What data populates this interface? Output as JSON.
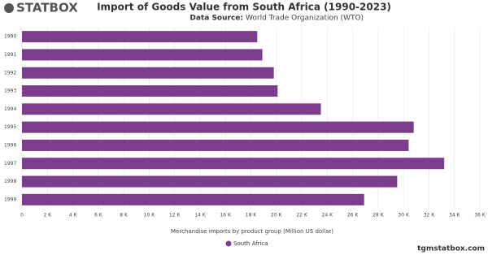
{
  "brand": "STATBOX",
  "footer": "tgmstatbox.com",
  "chart_data": {
    "type": "barh",
    "title": "Import of Goods Value from South Africa (1990-2023)",
    "source_label": "Data Source:",
    "source": "World Trade Organization (WTO)",
    "xlabel": "Merchandise imports by product group (Million US dollar)",
    "categories": [
      "1990",
      "1991",
      "1992",
      "1993",
      "1994",
      "1995",
      "1996",
      "1997",
      "1998",
      "1999"
    ],
    "series": [
      {
        "name": "South Africa",
        "color": "#7b3d8c",
        "values": [
          18500,
          18900,
          19800,
          20100,
          23500,
          30800,
          30400,
          33200,
          29500,
          26900
        ]
      }
    ],
    "xlim": [
      0,
      36000
    ],
    "xticks": [
      0,
      {
        "value": 2000,
        "label": "2 K"
      },
      {
        "value": 4000,
        "label": "4 K"
      },
      {
        "value": 6000,
        "label": "6 K"
      },
      {
        "value": 8000,
        "label": "8 K"
      },
      {
        "value": 10000,
        "label": "10 K"
      },
      {
        "value": 12000,
        "label": "12 K"
      },
      {
        "value": 14000,
        "label": "14 K"
      },
      {
        "value": 16000,
        "label": "16 K"
      },
      {
        "value": 18000,
        "label": "18 K"
      },
      {
        "value": 20000,
        "label": "20 K"
      },
      {
        "value": 22000,
        "label": "22 K"
      },
      {
        "value": 24000,
        "label": "24 K"
      },
      {
        "value": 26000,
        "label": "26 K"
      },
      {
        "value": 28000,
        "label": "28 K"
      },
      {
        "value": 30000,
        "label": "30 K"
      },
      {
        "value": 32000,
        "label": "32 K"
      },
      {
        "value": 34000,
        "label": "34 K"
      },
      {
        "value": 36000,
        "label": "36 K"
      }
    ],
    "grid": true
  }
}
